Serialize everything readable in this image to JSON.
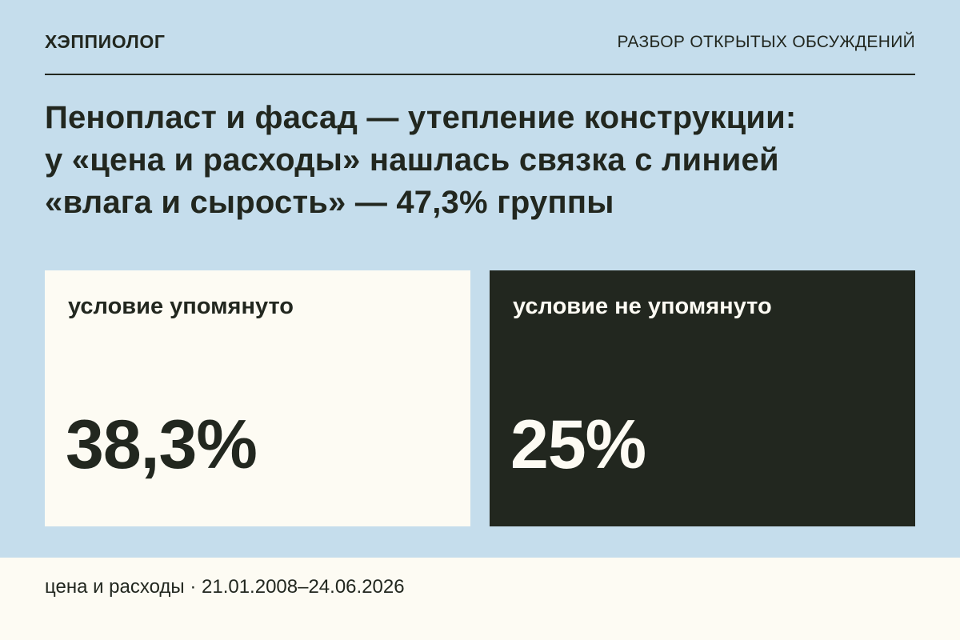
{
  "header": {
    "brand": "ХЭППИОЛОГ",
    "section": "РАЗБОР ОТКРЫТЫХ ОБСУЖДЕНИЙ"
  },
  "headline": {
    "lines": [
      "Пенопласт и фасад — утепление конструкции:",
      "у «цена и расходы» нашлась связка с линией",
      "«влага и сырость» — 47,3% группы"
    ]
  },
  "cards": [
    {
      "label": "условие упомянуто",
      "value": "38,3%",
      "color": "#fdfbf3"
    },
    {
      "label": "условие не упомянуто",
      "value": "25%",
      "color": "#22271f"
    }
  ],
  "footer": {
    "text": "цена и расходы · 21.01.2008–24.06.2026"
  },
  "colors": {
    "background": "#c5ddec",
    "ink": "#22271f",
    "paper": "#fdfbf3"
  }
}
